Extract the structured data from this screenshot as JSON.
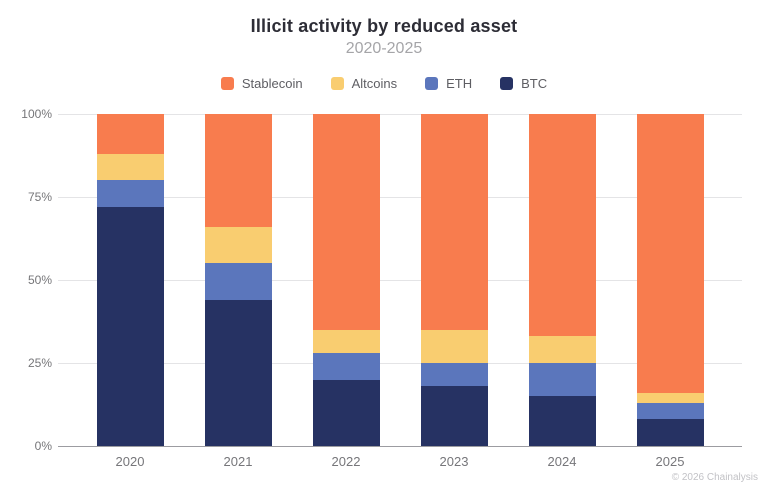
{
  "header": {
    "title": "Illicit activity by reduced asset",
    "subtitle": "2020-2025"
  },
  "legend": [
    {
      "label": "Stablecoin",
      "color": "#f87c4e"
    },
    {
      "label": "Altcoins",
      "color": "#f9cd70"
    },
    {
      "label": "ETH",
      "color": "#5b76bc"
    },
    {
      "label": "BTC",
      "color": "#263263"
    }
  ],
  "chart_data": {
    "type": "bar",
    "variant": "stacked-100-percent",
    "title": "Illicit activity by reduced asset",
    "subtitle": "2020-2025",
    "categories": [
      "2020",
      "2021",
      "2022",
      "2023",
      "2024",
      "2025"
    ],
    "series": [
      {
        "name": "BTC",
        "color": "#263263",
        "values": [
          72,
          44,
          20,
          18,
          15,
          8
        ]
      },
      {
        "name": "ETH",
        "color": "#5b76bc",
        "values": [
          8,
          11,
          8,
          7,
          10,
          5
        ]
      },
      {
        "name": "Altcoins",
        "color": "#f9cd70",
        "values": [
          8,
          11,
          7,
          10,
          8,
          3
        ]
      },
      {
        "name": "Stablecoin",
        "color": "#f87c4e",
        "values": [
          12,
          34,
          65,
          65,
          67,
          84
        ]
      }
    ],
    "stack_order_bottom_to_top": [
      "BTC",
      "ETH",
      "Altcoins",
      "Stablecoin"
    ],
    "xlabel": "",
    "ylabel": "",
    "ylim": [
      0,
      100
    ],
    "yticks": [
      {
        "value": 0,
        "label": "0%"
      },
      {
        "value": 25,
        "label": "25%"
      },
      {
        "value": 50,
        "label": "50%"
      },
      {
        "value": 75,
        "label": "75%"
      },
      {
        "value": 100,
        "label": "100%"
      }
    ],
    "grid": true,
    "legend_position": "top"
  },
  "footer": {
    "copyright": "© 2026 Chainalysis"
  }
}
